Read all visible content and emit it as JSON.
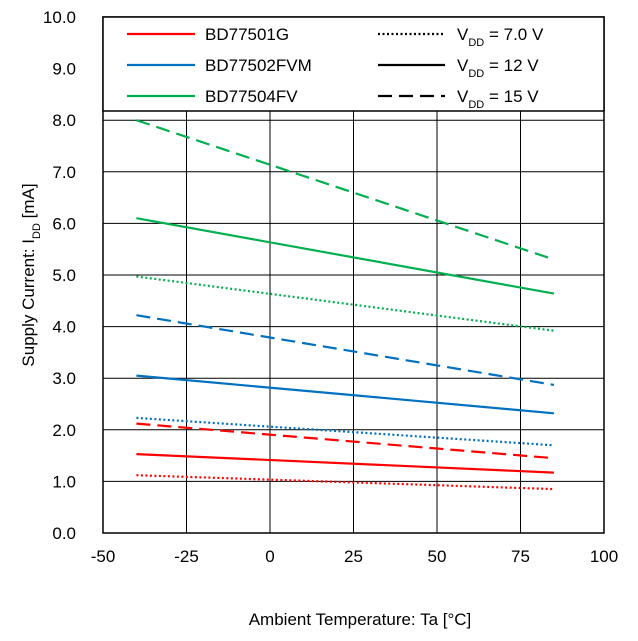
{
  "chart_data": {
    "type": "line",
    "xlabel": "Ambient Temperature: Ta [°C]",
    "ylabel": {
      "main": "Supply Current: I",
      "sub": "DD",
      "suffix": " [mA]"
    },
    "xlim": [
      -50,
      100
    ],
    "ylim": [
      0,
      10
    ],
    "x_ticks": [
      "-50",
      "-25",
      "0",
      "25",
      "50",
      "75",
      "100"
    ],
    "y_ticks": [
      "0.0",
      "1.0",
      "2.0",
      "3.0",
      "4.0",
      "5.0",
      "6.0",
      "7.0",
      "8.0",
      "9.0",
      "10.0"
    ],
    "grid": true,
    "legend_position": "top",
    "legend": {
      "devices": [
        {
          "name": "BD77501G",
          "color": "#ff0000"
        },
        {
          "name": "BD77502FVM",
          "color": "#0070c0"
        },
        {
          "name": "BD77504FV",
          "color": "#00b050"
        }
      ],
      "conditions": [
        {
          "prefix": "V",
          "sub": "DD",
          "suffix": " = 7.0 V",
          "style": "dotted"
        },
        {
          "prefix": "V",
          "sub": "DD",
          "suffix": " = 12 V",
          "style": "solid"
        },
        {
          "prefix": "V",
          "sub": "DD",
          "suffix": " = 15 V",
          "style": "dashed"
        }
      ]
    },
    "series": [
      {
        "device": "BD77501G",
        "vdd": "7.0 V",
        "color": "#ff0000",
        "style": "dotted",
        "x": [
          -40,
          85
        ],
        "values": [
          1.12,
          0.85
        ]
      },
      {
        "device": "BD77501G",
        "vdd": "12 V",
        "color": "#ff0000",
        "style": "solid",
        "x": [
          -40,
          85
        ],
        "values": [
          1.53,
          1.17
        ]
      },
      {
        "device": "BD77501G",
        "vdd": "15 V",
        "color": "#ff0000",
        "style": "dashed",
        "x": [
          -40,
          85
        ],
        "values": [
          2.12,
          1.45
        ]
      },
      {
        "device": "BD77502FVM",
        "vdd": "7.0 V",
        "color": "#0070c0",
        "style": "dotted",
        "x": [
          -40,
          85
        ],
        "values": [
          2.23,
          1.7
        ]
      },
      {
        "device": "BD77502FVM",
        "vdd": "12 V",
        "color": "#0070c0",
        "style": "solid",
        "x": [
          -40,
          85
        ],
        "values": [
          3.05,
          2.32
        ]
      },
      {
        "device": "BD77502FVM",
        "vdd": "15 V",
        "color": "#0070c0",
        "style": "dashed",
        "x": [
          -40,
          85
        ],
        "values": [
          4.22,
          2.87
        ]
      },
      {
        "device": "BD77504FV",
        "vdd": "7.0 V",
        "color": "#00b050",
        "style": "dotted",
        "x": [
          -40,
          85
        ],
        "values": [
          4.97,
          3.92
        ]
      },
      {
        "device": "BD77504FV",
        "vdd": "12 V",
        "color": "#00b050",
        "style": "solid",
        "x": [
          -40,
          85
        ],
        "values": [
          6.1,
          4.64
        ]
      },
      {
        "device": "BD77504FV",
        "vdd": "15 V",
        "color": "#00b050",
        "style": "dashed",
        "x": [
          -40,
          85
        ],
        "values": [
          8.0,
          5.3
        ]
      }
    ]
  }
}
